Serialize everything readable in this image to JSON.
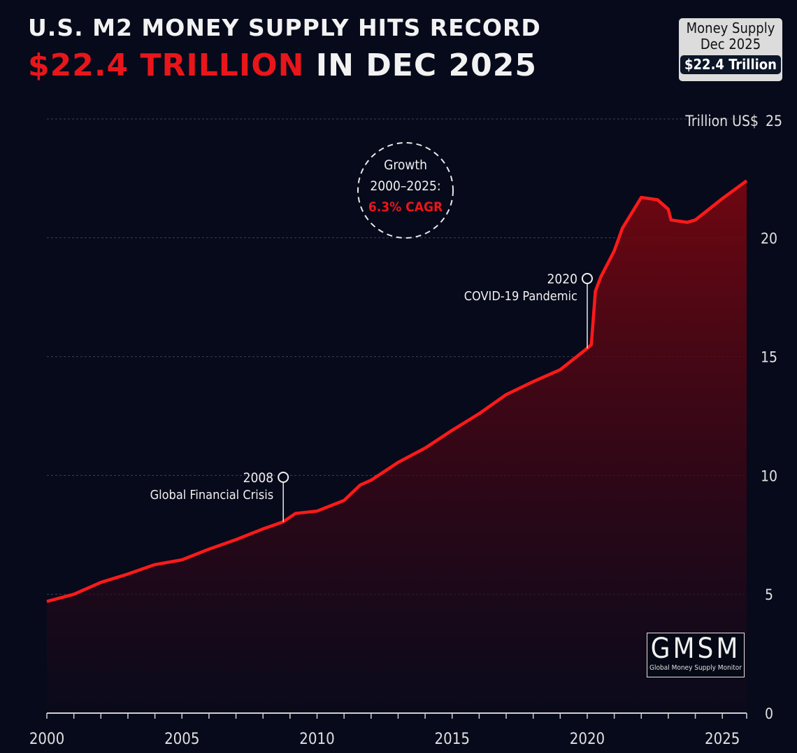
{
  "header": {
    "title_line1": "U.S. M2 MONEY SUPPLY HITS RECORD",
    "title_line2_highlight": "$22.4 TRILLION",
    "title_line2_rest": "IN DEC 2025"
  },
  "badge": {
    "line1": "Money Supply",
    "line2": "Dec 2025",
    "value": "$22.4 Trillion"
  },
  "growth_note": {
    "line1": "Growth",
    "line2": "2000–2025:",
    "line3": "6.3% CAGR"
  },
  "logo": {
    "name": "GMSM",
    "tagline": "Global Money Supply Monitor"
  },
  "colors": {
    "background": "#070a1a",
    "line": "#ff1a1a",
    "accent": "#e8161b"
  },
  "chart_data": {
    "type": "area",
    "title": "U.S. M2 MONEY SUPPLY HITS RECORD $22.4 TRILLION IN DEC 2025",
    "ylabel": "Trillion US$",
    "xlim": [
      2000,
      2025.9
    ],
    "ylim": [
      0,
      25
    ],
    "x_ticks": [
      2000,
      2005,
      2010,
      2015,
      2020,
      2025
    ],
    "y_ticks": [
      0,
      5,
      10,
      15,
      20,
      25
    ],
    "grid": true,
    "x": [
      2000.0,
      2001.0,
      2002.0,
      2003.0,
      2004.0,
      2005.0,
      2006.0,
      2007.0,
      2008.0,
      2008.75,
      2009.2,
      2010.0,
      2011.0,
      2011.6,
      2012.0,
      2013.0,
      2014.0,
      2015.0,
      2016.0,
      2017.0,
      2018.0,
      2019.0,
      2020.0,
      2020.15,
      2020.3,
      2020.5,
      2021.0,
      2021.3,
      2022.0,
      2022.6,
      2023.0,
      2023.1,
      2023.7,
      2024.0,
      2025.0,
      2025.9
    ],
    "values": [
      4.7,
      5.0,
      5.5,
      5.85,
      6.25,
      6.45,
      6.9,
      7.3,
      7.75,
      8.05,
      8.4,
      8.5,
      8.95,
      9.6,
      9.8,
      10.55,
      11.15,
      11.9,
      12.6,
      13.4,
      13.95,
      14.45,
      15.35,
      15.5,
      17.75,
      18.35,
      19.45,
      20.4,
      21.7,
      21.6,
      21.2,
      20.75,
      20.65,
      20.75,
      21.65,
      22.4
    ],
    "annotations": [
      {
        "x": 2008.75,
        "label_year": "2008",
        "label_text": "Global Financial Crisis"
      },
      {
        "x": 2020.0,
        "label_year": "2020",
        "label_text": "COVID-19 Pandemic"
      }
    ]
  }
}
